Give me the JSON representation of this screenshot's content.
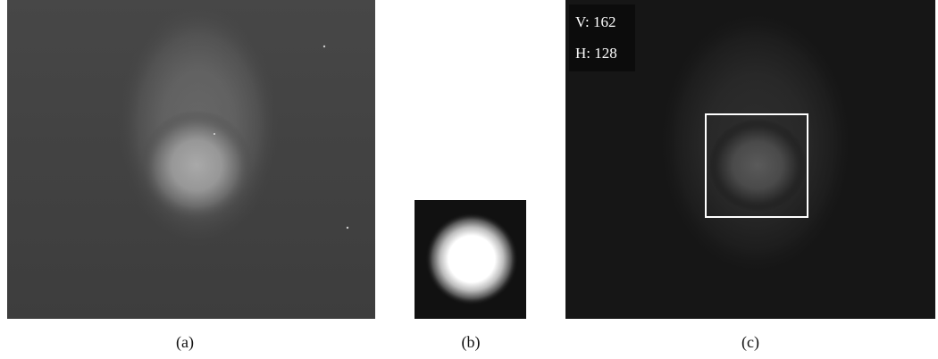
{
  "panels": [
    {
      "caption": "(a)"
    },
    {
      "caption": "(b)"
    },
    {
      "caption": "(c)",
      "overlay": [
        "V: 162",
        "H: 128"
      ]
    }
  ]
}
